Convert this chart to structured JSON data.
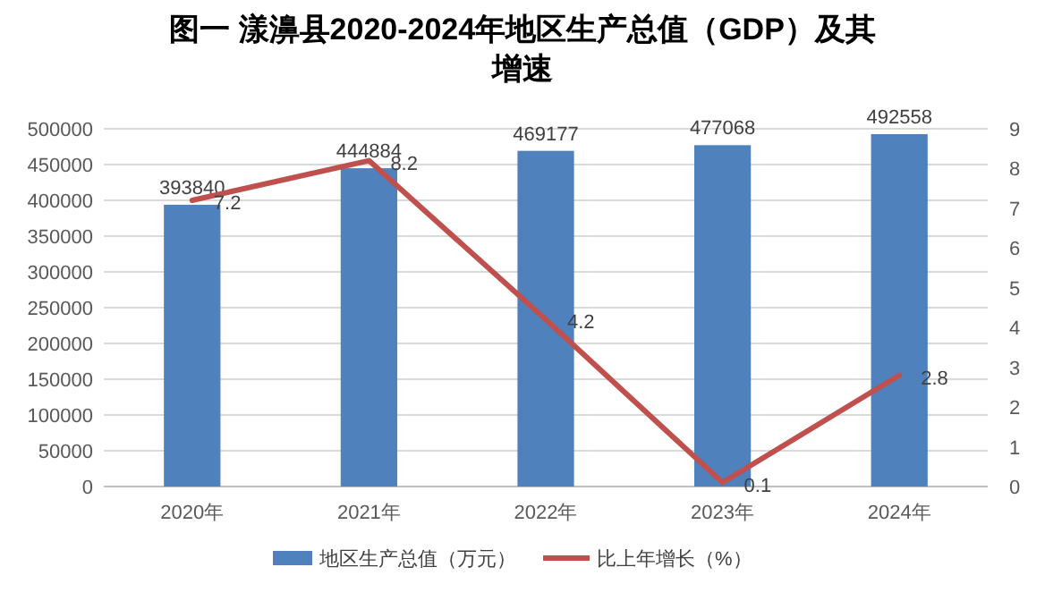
{
  "chart_data": {
    "type": "bar",
    "title": "图一  漾濞县2020-2024年地区生产总值（GDP）及其增速",
    "categories": [
      "2020年",
      "2021年",
      "2022年",
      "2023年",
      "2024年"
    ],
    "series": [
      {
        "name": "地区生产总值（万元）",
        "color": "#4f81bd",
        "values": [
          393840,
          444884,
          469177,
          477068,
          492558
        ]
      },
      {
        "name": "比上年增长（%）",
        "type": "line",
        "axis": "y2",
        "color": "#c0504d",
        "values": [
          7.2,
          8.2,
          4.2,
          0.1,
          2.8
        ]
      }
    ],
    "ylim": [
      0,
      500000
    ],
    "yticks": [
      0,
      50000,
      100000,
      150000,
      200000,
      250000,
      300000,
      350000,
      400000,
      450000,
      500000
    ],
    "y2lim": [
      0,
      9
    ],
    "y2ticks": [
      0,
      1,
      2,
      3,
      4,
      5,
      6,
      7,
      8,
      9
    ],
    "grid": "y",
    "legend": "bottom",
    "data_labels": true
  }
}
